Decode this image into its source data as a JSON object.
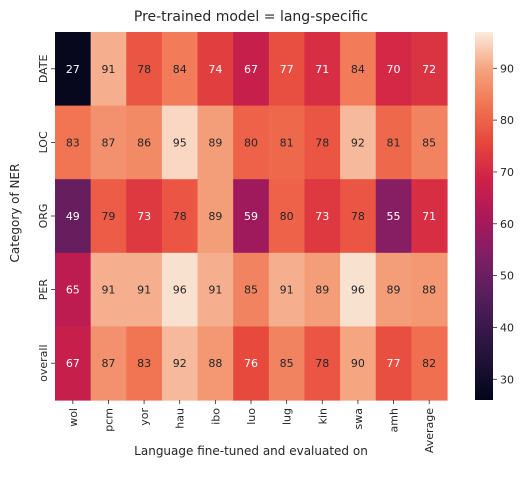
{
  "chart_data": {
    "type": "heatmap",
    "title": "Pre-trained model = lang-specific",
    "xlabel": "Language fine-tuned and evaluated on",
    "ylabel": "Category of NER",
    "x_categories": [
      "wol",
      "pcm",
      "yor",
      "hau",
      "ibo",
      "luo",
      "lug",
      "kin",
      "swa",
      "amh",
      "Average"
    ],
    "y_categories": [
      "DATE",
      "LOC",
      "ORG",
      "PER",
      "overall"
    ],
    "values": [
      [
        27,
        91,
        78,
        84,
        74,
        67,
        77,
        71,
        84,
        70,
        72
      ],
      [
        83,
        87,
        86,
        95,
        89,
        80,
        81,
        78,
        92,
        81,
        85
      ],
      [
        49,
        79,
        73,
        78,
        89,
        59,
        80,
        73,
        78,
        55,
        71
      ],
      [
        65,
        91,
        91,
        96,
        91,
        85,
        91,
        89,
        96,
        89,
        88
      ],
      [
        67,
        87,
        83,
        92,
        88,
        76,
        85,
        78,
        90,
        77,
        82
      ]
    ],
    "colorbar": {
      "colormap": "rocket",
      "vmin": 26,
      "vmax": 97,
      "ticks": [
        30,
        40,
        50,
        60,
        70,
        80,
        90
      ]
    }
  }
}
